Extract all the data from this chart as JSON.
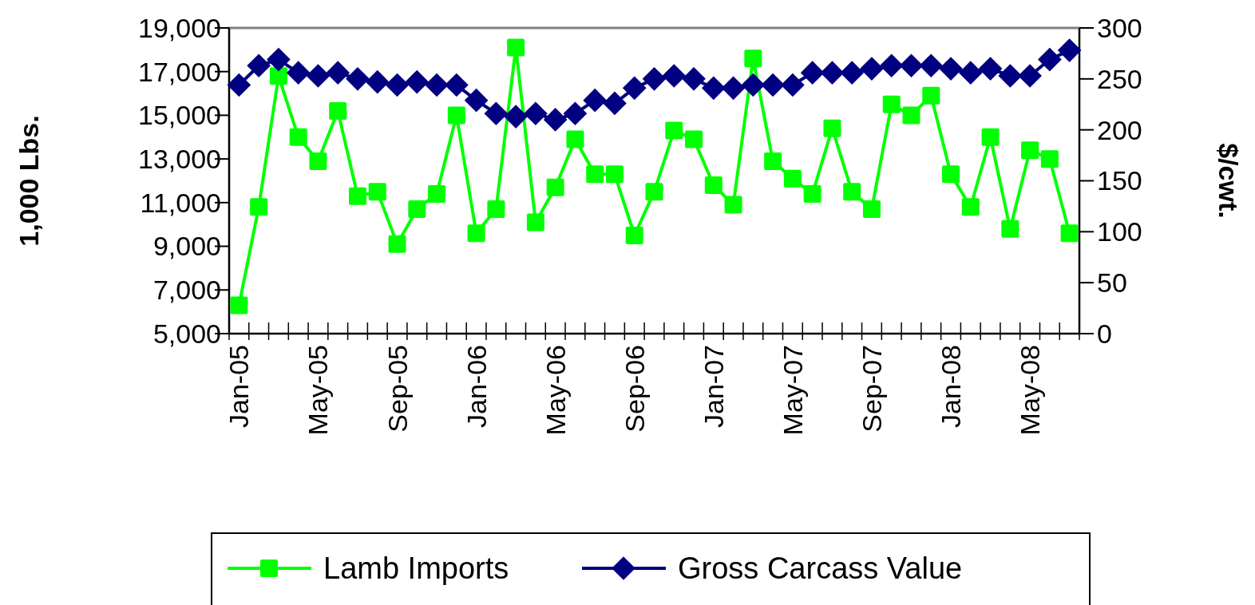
{
  "chart_data": {
    "type": "line",
    "categories": [
      "Jan-05",
      null,
      null,
      null,
      "May-05",
      null,
      null,
      null,
      "Sep-05",
      null,
      null,
      null,
      "Jan-06",
      null,
      null,
      null,
      "May-06",
      null,
      null,
      null,
      "Sep-06",
      null,
      null,
      null,
      "Jan-07",
      null,
      null,
      null,
      "May-07",
      null,
      null,
      null,
      "Sep-07",
      null,
      null,
      null,
      "Jan-08",
      null,
      null,
      null,
      "May-08",
      null,
      null
    ],
    "ylabel": "1,000 Lbs.",
    "y2label": "$/cwt.",
    "ylim": [
      5000,
      19000
    ],
    "yticks": [
      {
        "value": 5000,
        "label": "5,000"
      },
      {
        "value": 7000,
        "label": "7,000"
      },
      {
        "value": 9000,
        "label": "9,000"
      },
      {
        "value": 11000,
        "label": "11,000"
      },
      {
        "value": 13000,
        "label": "13,000"
      },
      {
        "value": 15000,
        "label": "15,000"
      },
      {
        "value": 17000,
        "label": "17,000"
      },
      {
        "value": 19000,
        "label": "19,000"
      }
    ],
    "y2lim": [
      0,
      300
    ],
    "y2ticks": [
      0,
      50,
      100,
      150,
      200,
      250,
      300
    ],
    "legend": "bottom",
    "grid": false,
    "series": [
      {
        "name": "Lamb Imports",
        "color": "#00ff00",
        "marker": "square",
        "values": [
          6300,
          10800,
          16800,
          14000,
          12900,
          15200,
          11300,
          11500,
          9100,
          10700,
          11400,
          15000,
          9600,
          10700,
          18100,
          10100,
          11700,
          13900,
          12300,
          12300,
          9500,
          11500,
          14300,
          13900,
          11800,
          10900,
          17600,
          12900,
          12100,
          11400,
          14400,
          11500,
          10700,
          15500,
          15000,
          15900,
          12300,
          10800,
          14000,
          9800,
          13400,
          13000,
          9600
        ]
      },
      {
        "name": "Gross Carcass Value",
        "color": "#000080",
        "marker": "diamond",
        "axis": "y2",
        "values": [
          244,
          263,
          269,
          256,
          253,
          256,
          250,
          247,
          244,
          247,
          244,
          244,
          229,
          216,
          213,
          216,
          210,
          216,
          229,
          226,
          241,
          250,
          253,
          250,
          241,
          241,
          244,
          244,
          244,
          256,
          256,
          256,
          260,
          263,
          263,
          263,
          260,
          256,
          260,
          253,
          253,
          269,
          278
        ]
      }
    ]
  }
}
